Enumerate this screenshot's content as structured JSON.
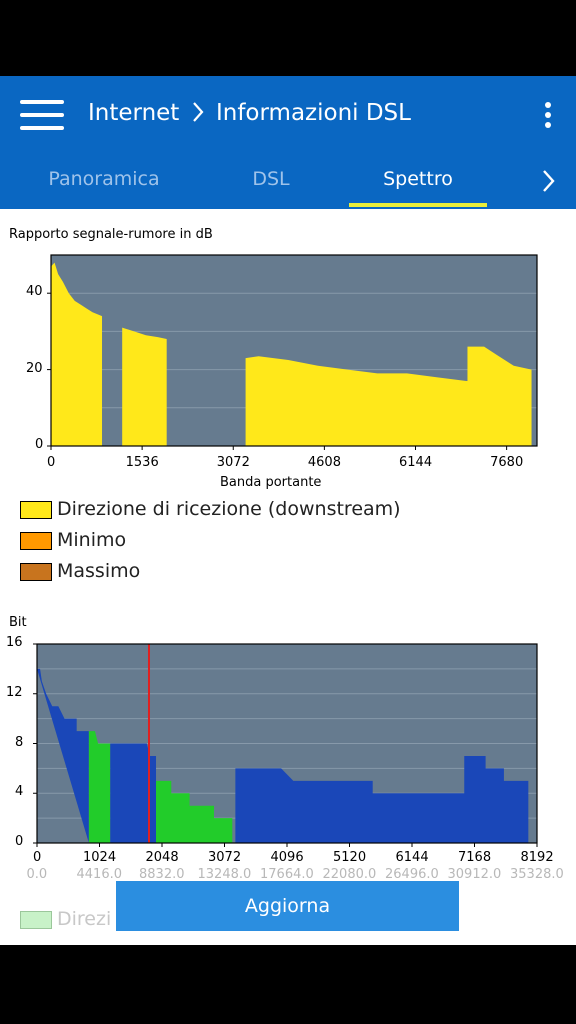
{
  "header": {
    "breadcrumb_parent": "Internet",
    "separator": ">",
    "breadcrumb_current": "Informazioni DSL",
    "menu_icon": "hamburger-menu-icon",
    "more_icon": "more-vertical-icon"
  },
  "tabs": [
    {
      "label": "Panoramica",
      "active": false
    },
    {
      "label": "DSL",
      "active": false
    },
    {
      "label": "Spettro",
      "active": true
    }
  ],
  "colors": {
    "appbar": "#0a67c2",
    "tab_indicator": "#e8ee3a",
    "plot_bg": "#667b8f",
    "snr_fill": "#ffe81a",
    "bits_blue": "#1a47b8",
    "bits_green": "#22cc2a",
    "marker_red": "#e02020",
    "button": "#2b8ee0"
  },
  "snr_chart": {
    "title": "Rapporto segnale-rumore in dB",
    "xlabel": "Banda portante",
    "legend": [
      {
        "label": "Direzione di ricezione (downstream)",
        "color": "#ffe81a"
      },
      {
        "label": "Minimo",
        "color": "#ff9900"
      },
      {
        "label": "Massimo",
        "color": "#c8741e"
      }
    ]
  },
  "bits_chart": {
    "title": "Bit",
    "secondary_ticks": [
      "0.0",
      "4416.0",
      "8832.0",
      "13248.0",
      "17664.0",
      "22080.0",
      "26496.0",
      "30912.0",
      "35328.0"
    ],
    "legend_partial": "Direzi"
  },
  "actions": {
    "refresh_label": "Aggiorna"
  },
  "chart_data": [
    {
      "type": "area",
      "title": "Rapporto segnale-rumore in dB",
      "xlabel": "Banda portante",
      "ylabel": "",
      "xlim": [
        0,
        8192
      ],
      "ylim": [
        0,
        50
      ],
      "xticks": [
        0,
        1536,
        3072,
        4608,
        6144,
        7680
      ],
      "yticks": [
        0,
        20,
        40
      ],
      "series": [
        {
          "name": "Direzione di ricezione (downstream)",
          "segments": [
            [
              [
                0,
                0
              ],
              [
                0,
                47
              ],
              [
                60,
                48
              ],
              [
                120,
                45
              ],
              [
                200,
                43
              ],
              [
                300,
                40
              ],
              [
                400,
                38
              ],
              [
                500,
                37
              ],
              [
                600,
                36
              ],
              [
                700,
                35
              ],
              [
                860,
                34
              ],
              [
                860,
                0
              ]
            ],
            [
              [
                1200,
                0
              ],
              [
                1200,
                31
              ],
              [
                1400,
                30
              ],
              [
                1600,
                29
              ],
              [
                1800,
                28.5
              ],
              [
                1950,
                28
              ],
              [
                1950,
                0
              ]
            ],
            [
              [
                3280,
                0
              ],
              [
                3280,
                23
              ],
              [
                3500,
                23.5
              ],
              [
                4000,
                22.5
              ],
              [
                4500,
                21
              ],
              [
                5000,
                20
              ],
              [
                5500,
                19
              ],
              [
                6000,
                19
              ],
              [
                6500,
                18
              ],
              [
                7000,
                17
              ],
              [
                7020,
                17
              ],
              [
                7020,
                26
              ],
              [
                7300,
                26
              ],
              [
                7500,
                24
              ],
              [
                7800,
                21
              ],
              [
                8100,
                20
              ],
              [
                8100,
                0
              ]
            ]
          ]
        }
      ],
      "grid": true,
      "legend_position": "below"
    },
    {
      "type": "area",
      "title": "Bit",
      "xlabel": "",
      "ylabel": "",
      "xlim": [
        0,
        8192
      ],
      "ylim": [
        0,
        16
      ],
      "xticks": [
        0,
        1024,
        2048,
        3072,
        4096,
        5120,
        6144,
        7168,
        8192
      ],
      "yticks": [
        0,
        4,
        8,
        12,
        16
      ],
      "series": [
        {
          "name": "",
          "color": "#1a47b8",
          "points": [
            [
              0,
              14
            ],
            [
              50,
              14
            ],
            [
              80,
              13
            ],
            [
              150,
              12
            ],
            [
              250,
              11
            ],
            [
              350,
              11
            ],
            [
              450,
              10
            ],
            [
              650,
              10
            ],
            [
              650,
              9
            ],
            [
              850,
              9
            ],
            [
              850,
              0
            ]
          ]
        },
        {
          "name": "",
          "color": "#22cc2a",
          "points": [
            [
              850,
              9
            ],
            [
              950,
              9
            ],
            [
              1000,
              8
            ],
            [
              1200,
              8
            ],
            [
              1200,
              0
            ],
            [
              850,
              0
            ]
          ]
        },
        {
          "name": "",
          "color": "#1a47b8",
          "points": [
            [
              1200,
              8
            ],
            [
              1800,
              8
            ],
            [
              1850,
              7
            ],
            [
              1950,
              7
            ],
            [
              1950,
              0
            ],
            [
              1200,
              0
            ]
          ]
        },
        {
          "name": "",
          "color": "#22cc2a",
          "points": [
            [
              1950,
              5
            ],
            [
              2200,
              5
            ],
            [
              2200,
              4
            ],
            [
              2500,
              4
            ],
            [
              2500,
              3
            ],
            [
              2900,
              3
            ],
            [
              2900,
              2
            ],
            [
              3200,
              2
            ],
            [
              3200,
              0
            ],
            [
              1950,
              0
            ]
          ]
        },
        {
          "name": "",
          "color": "#1a47b8",
          "points": [
            [
              3250,
              6
            ],
            [
              4000,
              6
            ],
            [
              4200,
              5
            ],
            [
              5500,
              5
            ],
            [
              5500,
              4
            ],
            [
              7000,
              4
            ],
            [
              7000,
              7
            ],
            [
              7350,
              7
            ],
            [
              7350,
              6
            ],
            [
              7650,
              6
            ],
            [
              7650,
              5
            ],
            [
              8050,
              5
            ],
            [
              8050,
              0
            ],
            [
              3250,
              0
            ]
          ]
        }
      ],
      "marker_x": 1835,
      "grid": true
    }
  ]
}
